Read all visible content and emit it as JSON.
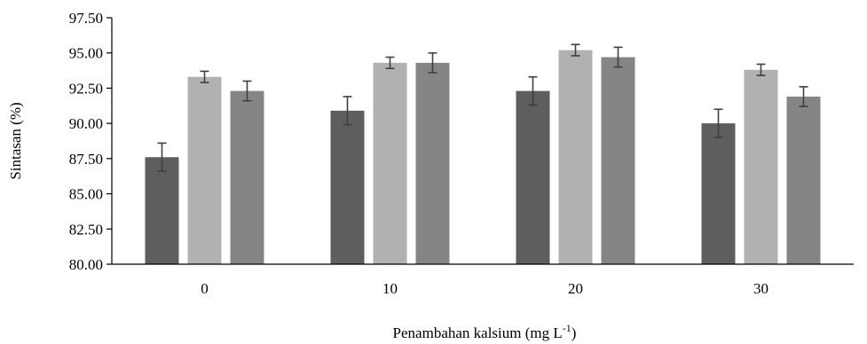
{
  "chart_data": {
    "type": "bar",
    "categories": [
      "0",
      "10",
      "20",
      "30"
    ],
    "series": [
      {
        "values": [
          87.6,
          90.9,
          92.3,
          90.0
        ],
        "errors": [
          1.0,
          1.0,
          1.0,
          1.0
        ],
        "color": "#5e5e5e"
      },
      {
        "values": [
          93.3,
          94.3,
          95.2,
          93.8
        ],
        "errors": [
          0.4,
          0.4,
          0.4,
          0.4
        ],
        "color": "#b1b1b1"
      },
      {
        "values": [
          92.3,
          94.3,
          94.7,
          91.9
        ],
        "errors": [
          0.7,
          0.7,
          0.7,
          0.7
        ],
        "color": "#858585"
      }
    ],
    "ylim": [
      80,
      97.5
    ],
    "yticks": [
      "80.00",
      "82.50",
      "85.00",
      "87.50",
      "90.00",
      "92.50",
      "95.00",
      "97.50"
    ],
    "ylabel": "Sintasan (%)",
    "xlabel_main": "Penambahan kalsium (mg L",
    "xlabel_sup": "-1",
    "xlabel_end": ")",
    "grid": false,
    "legend": "none"
  }
}
